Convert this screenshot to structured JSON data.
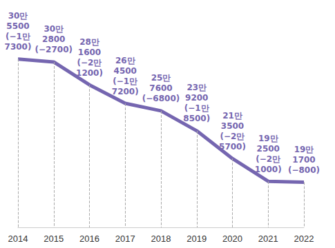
{
  "chart_data": {
    "type": "line",
    "categories": [
      "2014",
      "2015",
      "2016",
      "2017",
      "2018",
      "2019",
      "2020",
      "2021",
      "2022"
    ],
    "values": [
      305500,
      302800,
      281600,
      264500,
      257600,
      239200,
      213500,
      192500,
      191700
    ],
    "value_labels": [
      "30만\n5500\n(−1만\n7300)",
      "30만\n2800\n(−2700)",
      "28만\n1600\n(−2만\n1200)",
      "26만\n4500\n(−1만\n7200)",
      "25만\n7600\n(−6800)",
      "23만\n9200\n(−1만\n8500)",
      "21만\n3500\n(−2만\n5700)",
      "19만\n2500\n(−2만\n1000)",
      "19만\n1700\n(−800)"
    ],
    "color": "#7566b0",
    "ylim": [
      150000,
      360000
    ],
    "yticks": [
      150000,
      360000
    ],
    "grid": false,
    "data_labels": true,
    "tick_labels": "x",
    "marker": "none"
  }
}
